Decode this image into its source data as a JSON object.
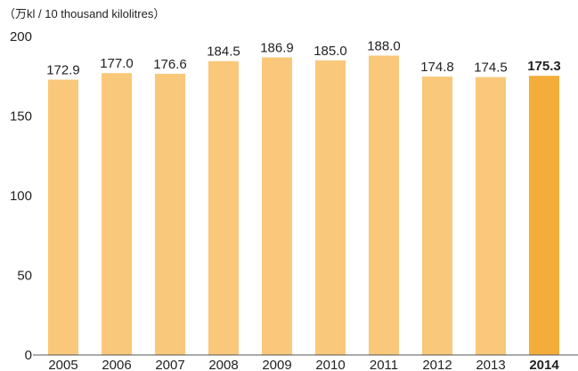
{
  "chart_data": {
    "type": "bar",
    "title": "",
    "unit_label": "（万kl / 10 thousand kilolitres）",
    "xlabel": "",
    "ylabel": "",
    "ylim": [
      0,
      200
    ],
    "yticks": [
      0,
      50,
      100,
      150,
      200
    ],
    "categories": [
      "2005",
      "2006",
      "2007",
      "2008",
      "2009",
      "2010",
      "2011",
      "2012",
      "2013",
      "2014"
    ],
    "values": [
      172.9,
      177.0,
      176.6,
      184.5,
      186.9,
      185.0,
      188.0,
      174.8,
      174.5,
      175.3
    ],
    "value_labels": [
      "172.9",
      "177.0",
      "176.6",
      "184.5",
      "186.9",
      "185.0",
      "188.0",
      "174.8",
      "174.5",
      "175.3"
    ],
    "highlight_category": "2014",
    "colors": {
      "bar": "#F9C87A",
      "highlight": "#F3AD3A",
      "axis": "#555555"
    },
    "grid": false,
    "legend": "none"
  }
}
